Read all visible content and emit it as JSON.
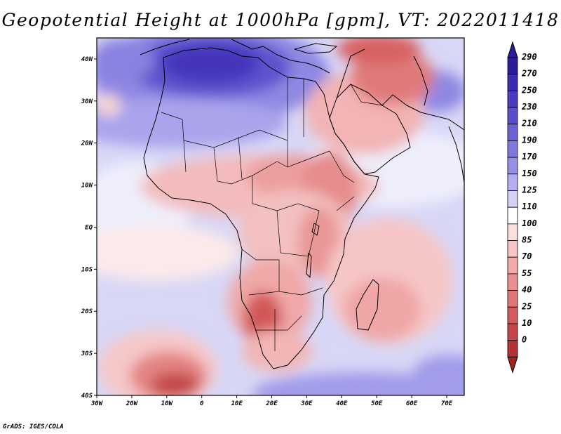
{
  "title": "Geopotential Height at 1000hPa [gpm], VT: 2022011418",
  "credit": "GrADS: IGES/COLA",
  "map": {
    "lon_range": [
      -30,
      75
    ],
    "lat_range": [
      -40,
      45
    ],
    "lon_ticks": [
      {
        "lon": -30,
        "label": "30W"
      },
      {
        "lon": -20,
        "label": "20W"
      },
      {
        "lon": -10,
        "label": "10W"
      },
      {
        "lon": 0,
        "label": "0"
      },
      {
        "lon": 10,
        "label": "10E"
      },
      {
        "lon": 20,
        "label": "20E"
      },
      {
        "lon": 30,
        "label": "30E"
      },
      {
        "lon": 40,
        "label": "40E"
      },
      {
        "lon": 50,
        "label": "50E"
      },
      {
        "lon": 60,
        "label": "60E"
      },
      {
        "lon": 70,
        "label": "70E"
      }
    ],
    "lat_ticks": [
      {
        "lat": 40,
        "label": "40N"
      },
      {
        "lat": 30,
        "label": "30N"
      },
      {
        "lat": 20,
        "label": "20N"
      },
      {
        "lat": 10,
        "label": "10N"
      },
      {
        "lat": 0,
        "label": "EQ"
      },
      {
        "lat": -10,
        "label": "10S"
      },
      {
        "lat": -20,
        "label": "20S"
      },
      {
        "lat": -30,
        "label": "30S"
      },
      {
        "lat": -40,
        "label": "40S"
      }
    ],
    "field_features": [
      {
        "region": "Mediterranean / Sahara high",
        "lon": 10,
        "lat": 34,
        "value": 270
      },
      {
        "region": "North Atlantic high",
        "lon": -15,
        "lat": 40,
        "value": 230
      },
      {
        "region": "Mid-Atlantic",
        "lon": -18,
        "lat": 20,
        "value": 170
      },
      {
        "region": "Canary islands pocket",
        "lon": -28,
        "lat": 29,
        "value": 100
      },
      {
        "region": "Arabian Peninsula",
        "lon": 45,
        "lat": 28,
        "value": 55
      },
      {
        "region": "Turkey / Caspian",
        "lon": 48,
        "lat": 40,
        "value": 40
      },
      {
        "region": "Sahel / Chad",
        "lon": 22,
        "lat": 12,
        "value": 70
      },
      {
        "region": "Ethiopian highlands",
        "lon": 38,
        "lat": 9,
        "value": 55
      },
      {
        "region": "Great Lakes",
        "lon": 31,
        "lat": -2,
        "value": 55
      },
      {
        "region": "Kalahari low",
        "lon": 20,
        "lat": -22,
        "value": 25
      },
      {
        "region": "South Atlantic low",
        "lon": -8,
        "lat": -38,
        "value": 10
      },
      {
        "region": "South Indian Ocean",
        "lon": 58,
        "lat": -22,
        "value": 70
      },
      {
        "region": "Southern Ocean high",
        "lon": 45,
        "lat": -38,
        "value": 170
      }
    ]
  },
  "colorbar": {
    "levels": [
      {
        "label": "290",
        "color": "#2a1c9a"
      },
      {
        "label": "270",
        "color": "#3a2cb0"
      },
      {
        "label": "250",
        "color": "#4a3cbf"
      },
      {
        "label": "230",
        "color": "#5a4dcb"
      },
      {
        "label": "210",
        "color": "#6d62d4"
      },
      {
        "label": "190",
        "color": "#8178dd"
      },
      {
        "label": "170",
        "color": "#968fe6"
      },
      {
        "label": "150",
        "color": "#b2aeef"
      },
      {
        "label": "125",
        "color": "#d3d1f6"
      },
      {
        "label": "110",
        "color": "#ffffff"
      },
      {
        "label": "100",
        "color": "#fbdede"
      },
      {
        "label": "85",
        "color": "#f6c4c4"
      },
      {
        "label": "70",
        "color": "#f0aaaa"
      },
      {
        "label": "55",
        "color": "#e98f8f"
      },
      {
        "label": "40",
        "color": "#e07676"
      },
      {
        "label": "25",
        "color": "#d45c5c"
      },
      {
        "label": "10",
        "color": "#c54646"
      },
      {
        "label": "0",
        "color": "#b33232"
      },
      {
        "label": "",
        "color": "#a22222"
      }
    ]
  }
}
